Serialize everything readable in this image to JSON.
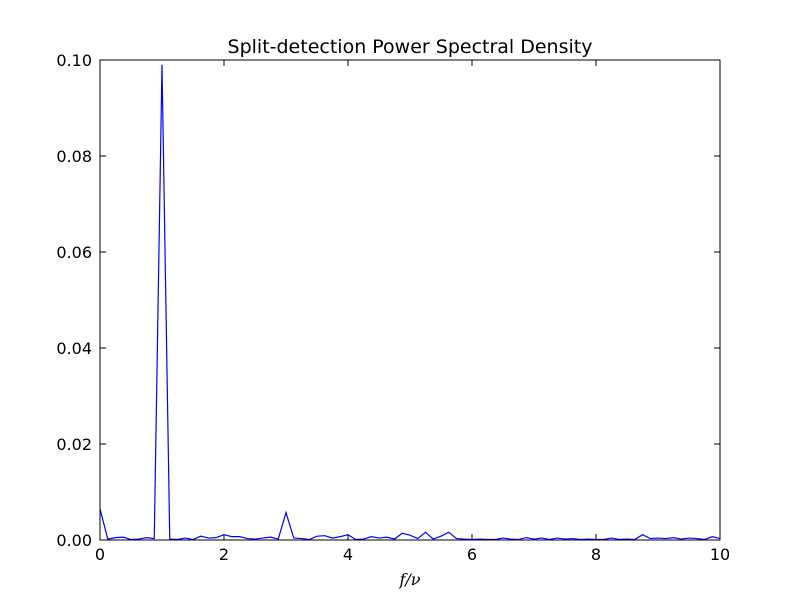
{
  "chart_data": {
    "type": "line",
    "title": "Split-detection Power Spectral Density",
    "x_label": "f/ν",
    "x": [
      0,
      0.125,
      0.25,
      0.375,
      0.5,
      0.625,
      0.75,
      0.875,
      1,
      1.125,
      1.25,
      1.375,
      1.5,
      1.625,
      1.75,
      1.875,
      2,
      2.125,
      2.25,
      2.375,
      2.5,
      2.625,
      2.75,
      2.875,
      3,
      3.125,
      3.25,
      3.375,
      3.5,
      3.625,
      3.75,
      3.875,
      4,
      4.125,
      4.25,
      4.375,
      4.5,
      4.625,
      4.75,
      4.875,
      5,
      5.125,
      5.25,
      5.375,
      5.5,
      5.625,
      5.75,
      5.875,
      6,
      6.125,
      6.25,
      6.375,
      6.5,
      6.625,
      6.75,
      6.875,
      7,
      7.125,
      7.25,
      7.375,
      7.5,
      7.625,
      7.75,
      7.875,
      8,
      8.125,
      8.25,
      8.375,
      8.5,
      8.625,
      8.75,
      8.875,
      9,
      9.125,
      9.25,
      9.375,
      9.5,
      9.625,
      9.75,
      9.875,
      10
    ],
    "series": [
      {
        "color": "#0000ff",
        "values": [
          0.0065,
          0.0002,
          0.0005,
          0.0006,
          0.0001,
          0.0002,
          0.0005,
          0.0003,
          0.099,
          0.0002,
          0.0001,
          0.0004,
          0.0001,
          0.0008,
          0.0004,
          0.0005,
          0.0011,
          0.0007,
          0.0007,
          0.0003,
          0.0002,
          0.0004,
          0.0006,
          0.0002,
          0.0057,
          0.0004,
          0.0003,
          0.0001,
          0.0008,
          0.0009,
          0.0004,
          0.0007,
          0.0011,
          0.0001,
          0.0002,
          0.0007,
          0.0004,
          0.0006,
          0.0002,
          0.0014,
          0.001,
          0.0003,
          0.0016,
          0.0002,
          0.0008,
          0.0016,
          0.0003,
          0.0002,
          0.0001,
          0.0002,
          0.0001,
          0.0001,
          0.0004,
          0.0002,
          0.0001,
          0.0005,
          0.0002,
          0.0004,
          0.0001,
          0.0004,
          0.0002,
          0.0003,
          0.0001,
          0.0002,
          0.0001,
          0.0001,
          0.0004,
          0.0001,
          0.0002,
          0.0001,
          0.0011,
          0.0003,
          0.0004,
          0.0003,
          0.0005,
          0.0002,
          0.0004,
          0.0003,
          0.0001,
          0.0007,
          0.0003
        ]
      }
    ],
    "xlim": [
      0,
      10
    ],
    "xticks": [
      0,
      2,
      4,
      6,
      8,
      10
    ],
    "ylim": [
      0,
      0.1
    ],
    "yticks": [
      {
        "value": 0,
        "label": "0.00"
      },
      {
        "value": 0.02,
        "label": "0.02"
      },
      {
        "value": 0.04,
        "label": "0.04"
      },
      {
        "value": 0.06,
        "label": "0.06"
      },
      {
        "value": 0.08,
        "label": "0.08"
      },
      {
        "value": 0.1,
        "label": "0.10"
      }
    ]
  }
}
